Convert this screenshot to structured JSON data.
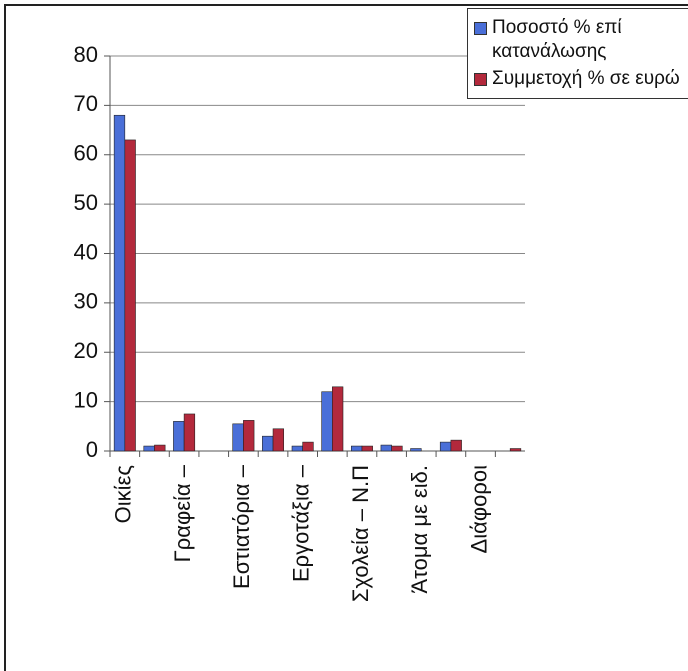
{
  "chart_data": {
    "type": "bar",
    "categories": [
      "Οικίες",
      null,
      "Γραφεία –",
      null,
      "Εστιατόρια –",
      null,
      "Εργοτάξια –",
      null,
      "Σχολεία – Ν.Π",
      null,
      "Άτομα με ειδ.",
      null,
      "Διάφοροι",
      null
    ],
    "series": [
      {
        "name": "Ποσοστό % επί κατανάλωσης",
        "color": "#4a6fd8",
        "values": [
          68,
          1,
          6,
          0,
          5.5,
          3,
          1,
          12,
          1,
          1.2,
          0.5,
          1.8,
          0,
          0
        ]
      },
      {
        "name": "Συμμετοχή % σε ευρώ",
        "color": "#b3293c",
        "values": [
          63,
          1.2,
          7.5,
          0,
          6.2,
          4.5,
          1.8,
          13,
          1,
          1,
          0,
          2.2,
          0,
          0.5
        ]
      }
    ],
    "ylim": [
      0,
      80
    ],
    "yticks": [
      0,
      10,
      20,
      30,
      40,
      50,
      60,
      70,
      80
    ],
    "grid": true,
    "legend": "top-right"
  }
}
